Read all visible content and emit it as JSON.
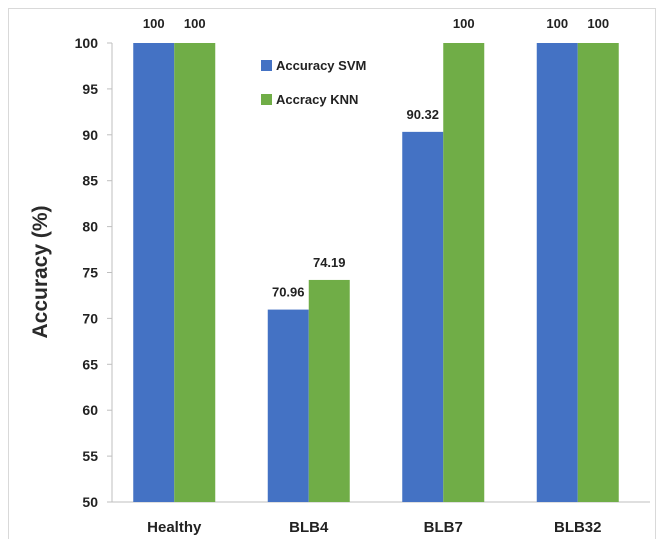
{
  "chart_data": {
    "type": "bar",
    "categories": [
      "Healthy",
      "BLB4",
      "BLB7",
      "BLB32"
    ],
    "series": [
      {
        "name": "Accuracy SVM",
        "color": "#4472C4",
        "values": [
          100,
          70.96,
          90.32,
          100
        ],
        "labels": [
          "100",
          "70.96",
          "90.32",
          "100"
        ]
      },
      {
        "name": "Accracy KNN",
        "color": "#70AD47",
        "values": [
          100,
          74.19,
          100,
          100
        ],
        "labels": [
          "100",
          "74.19",
          "100",
          "100"
        ]
      }
    ],
    "ylabel": "Accuracy (%)",
    "xlabel": "",
    "ylim": [
      50,
      100
    ],
    "yticks": [
      "50",
      "55",
      "60",
      "65",
      "70",
      "75",
      "80",
      "85",
      "90",
      "95",
      "100"
    ],
    "grid": false,
    "legend_position": "top-center"
  }
}
